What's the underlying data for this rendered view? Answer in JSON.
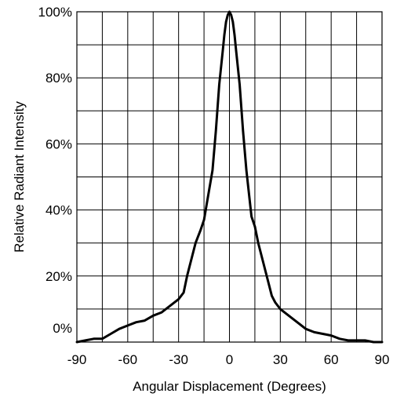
{
  "chart_data": {
    "type": "line",
    "title": "",
    "xlabel": "Angular Displacement (Degrees)",
    "ylabel": "Relative Radiant Intensity",
    "xlim": [
      -90,
      90
    ],
    "ylim": [
      0,
      100
    ],
    "x_ticks": [
      -90,
      -60,
      -30,
      0,
      30,
      60,
      90
    ],
    "x_tick_labels": [
      "-90",
      "-60",
      "-30",
      "0",
      "30",
      "60",
      "90"
    ],
    "y_ticks": [
      0,
      20,
      40,
      60,
      80,
      100
    ],
    "y_tick_labels": [
      "0%",
      "20%",
      "40%",
      "60%",
      "80%",
      "100%"
    ],
    "grid": true,
    "x_grid_step": 15,
    "y_grid_step": 10,
    "line_color": "#000000",
    "series": [
      {
        "x": [
          -90,
          -85,
          -80,
          -75,
          -70,
          -65,
          -60,
          -55,
          -50,
          -45,
          -40,
          -35,
          -30,
          -27,
          -25,
          -23,
          -20,
          -17,
          -15,
          -13,
          -10,
          -8,
          -6,
          -4,
          -3,
          -2,
          -1,
          0,
          1,
          2,
          3,
          4,
          6,
          8,
          10,
          13,
          15,
          17,
          20,
          23,
          25,
          27,
          30,
          35,
          40,
          45,
          50,
          55,
          60,
          65,
          70,
          75,
          80,
          85,
          90
        ],
        "y": [
          0,
          0.5,
          1,
          1,
          2.5,
          4,
          5,
          6,
          6.5,
          8,
          9,
          11,
          13,
          15,
          20,
          24,
          30,
          34,
          37,
          43,
          52,
          64,
          78,
          88,
          93,
          97,
          99,
          100,
          99,
          97,
          93,
          88,
          78,
          64,
          52,
          38,
          35,
          30,
          24,
          18,
          14,
          12,
          10,
          8,
          6,
          4,
          3,
          2.5,
          2,
          1,
          0.5,
          0.5,
          0.5,
          0,
          0
        ]
      }
    ]
  }
}
